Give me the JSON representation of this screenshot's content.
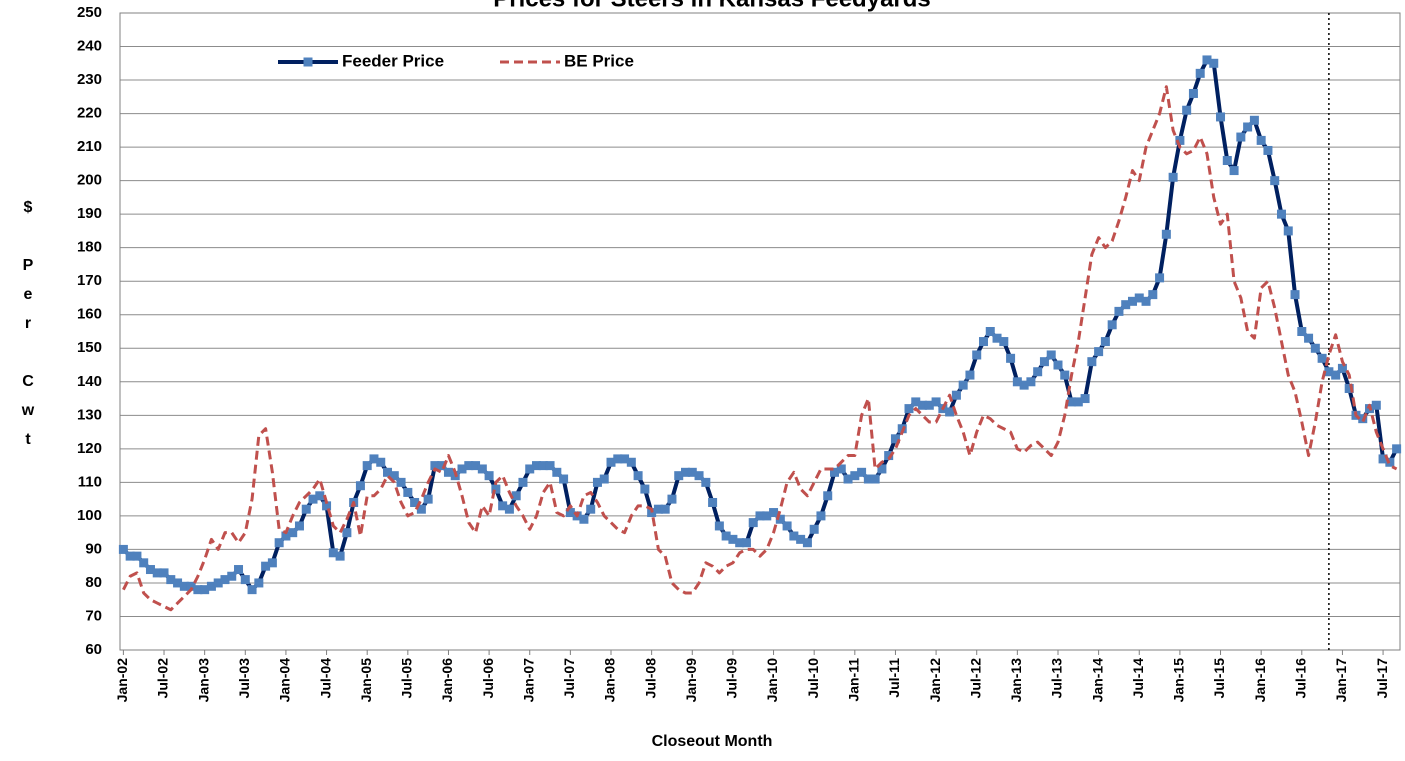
{
  "chart_data": {
    "type": "line",
    "title": "Prices for Steers in Kansas Feedyards",
    "x_label": "Closeout Month",
    "y_label": "$ Per Cwt",
    "categories": [
      "Jan-02",
      null,
      null,
      null,
      null,
      null,
      "Jul-02",
      null,
      null,
      null,
      null,
      null,
      "Jan-03",
      null,
      null,
      null,
      null,
      null,
      "Jul-03",
      null,
      null,
      null,
      null,
      null,
      "Jan-04",
      null,
      null,
      null,
      null,
      null,
      "Jul-04",
      null,
      null,
      null,
      null,
      null,
      "Jan-05",
      null,
      null,
      null,
      null,
      null,
      "Jul-05",
      null,
      null,
      null,
      null,
      null,
      "Jan-06",
      null,
      null,
      null,
      null,
      null,
      "Jul-06",
      null,
      null,
      null,
      null,
      null,
      "Jan-07",
      null,
      null,
      null,
      null,
      null,
      "Jul-07",
      null,
      null,
      null,
      null,
      null,
      "Jan-08",
      null,
      null,
      null,
      null,
      null,
      "Jul-08",
      null,
      null,
      null,
      null,
      null,
      "Jan-09",
      null,
      null,
      null,
      null,
      null,
      "Jul-09",
      null,
      null,
      null,
      null,
      null,
      "Jan-10",
      null,
      null,
      null,
      null,
      null,
      "Jul-10",
      null,
      null,
      null,
      null,
      null,
      "Jan-11",
      null,
      null,
      null,
      null,
      null,
      "Jul-11",
      null,
      null,
      null,
      null,
      null,
      "Jan-12",
      null,
      null,
      null,
      null,
      null,
      "Jul-12",
      null,
      null,
      null,
      null,
      null,
      "Jan-13",
      null,
      null,
      null,
      null,
      null,
      "Jul-13",
      null,
      null,
      null,
      null,
      null,
      "Jan-14",
      null,
      null,
      null,
      null,
      null,
      "Jul-14",
      null,
      null,
      null,
      null,
      null,
      "Jan-15",
      null,
      null,
      null,
      null,
      null,
      "Jul-15",
      null,
      null,
      null,
      null,
      null,
      "Jan-16",
      null,
      null,
      null,
      null,
      null,
      "Jul-16",
      null,
      null,
      null,
      null,
      null,
      "Jan-17",
      null,
      null,
      null,
      null,
      null,
      "Jul-17",
      null,
      null
    ],
    "series": [
      {
        "name": "Feeder Price",
        "color": "#002060",
        "marker_color": "#4f81bd",
        "style": "solid",
        "values": [
          90,
          88,
          88,
          86,
          84,
          83,
          83,
          81,
          80,
          79,
          79,
          78,
          78,
          79,
          80,
          81,
          82,
          84,
          81,
          78,
          80,
          85,
          86,
          92,
          94,
          95,
          97,
          102,
          105,
          106,
          103,
          89,
          88,
          95,
          104,
          109,
          115,
          117,
          116,
          113,
          112,
          110,
          107,
          104,
          102,
          105,
          115,
          115,
          113,
          112,
          114,
          115,
          115,
          114,
          112,
          108,
          103,
          102,
          106,
          110,
          114,
          115,
          115,
          115,
          113,
          111,
          101,
          100,
          99,
          102,
          110,
          111,
          116,
          117,
          117,
          116,
          112,
          108,
          101,
          102,
          102,
          105,
          112,
          113,
          113,
          112,
          110,
          104,
          97,
          94,
          93,
          92,
          92,
          98,
          100,
          100,
          101,
          99,
          97,
          94,
          93,
          92,
          96,
          100,
          106,
          113,
          114,
          111,
          112,
          113,
          111,
          111,
          114,
          118,
          123,
          126,
          132,
          134,
          133,
          133,
          134,
          132,
          131,
          136,
          139,
          142,
          148,
          152,
          155,
          153,
          152,
          147,
          140,
          139,
          140,
          143,
          146,
          148,
          145,
          142,
          134,
          134,
          135,
          146,
          149,
          152,
          157,
          161,
          163,
          164,
          165,
          164,
          166,
          171,
          184,
          201,
          212,
          221,
          226,
          232,
          236,
          235,
          219,
          206,
          203,
          213,
          216,
          218,
          212,
          209,
          200,
          190,
          185,
          166,
          155,
          153,
          150,
          147,
          143,
          142,
          144,
          138,
          130,
          129,
          132,
          133,
          117,
          116,
          120
        ]
      },
      {
        "name": "BE Price",
        "color": "#c0504d",
        "style": "dashed",
        "values": [
          78,
          82,
          83,
          77,
          75,
          74,
          73,
          72,
          74,
          76,
          78,
          82,
          87,
          93,
          90,
          95,
          95,
          92,
          95,
          105,
          124,
          126,
          113,
          96,
          95,
          100,
          104,
          106,
          108,
          111,
          104,
          97,
          95,
          99,
          104,
          94,
          106,
          106,
          108,
          112,
          110,
          104,
          100,
          101,
          105,
          110,
          114,
          113,
          118,
          113,
          106,
          98,
          95,
          103,
          100,
          110,
          112,
          107,
          103,
          100,
          96,
          100,
          107,
          110,
          101,
          100,
          103,
          100,
          106,
          107,
          104,
          100,
          98,
          96,
          95,
          100,
          103,
          103,
          102,
          90,
          88,
          80,
          78,
          77,
          77,
          80,
          86,
          85,
          83,
          85,
          86,
          89,
          90,
          90,
          88,
          90,
          95,
          102,
          110,
          113,
          108,
          106,
          110,
          114,
          114,
          114,
          116,
          118,
          118,
          130,
          135,
          114,
          116,
          117,
          120,
          125,
          130,
          132,
          130,
          128,
          128,
          132,
          136,
          130,
          125,
          118,
          125,
          130,
          129,
          127,
          126,
          125,
          120,
          119,
          121,
          122,
          120,
          118,
          122,
          130,
          142,
          152,
          165,
          178,
          183,
          180,
          182,
          188,
          195,
          203,
          200,
          210,
          215,
          220,
          228,
          215,
          210,
          208,
          209,
          213,
          208,
          195,
          187,
          190,
          170,
          165,
          155,
          153,
          168,
          170,
          162,
          152,
          142,
          137,
          128,
          118,
          128,
          140,
          148,
          154,
          146,
          142,
          130,
          128,
          133,
          125,
          120,
          115,
          114
        ]
      }
    ],
    "ylim": [
      60,
      250
    ],
    "yticks": [
      60,
      70,
      80,
      90,
      100,
      110,
      120,
      130,
      140,
      150,
      160,
      170,
      180,
      190,
      200,
      210,
      220,
      230,
      240,
      250
    ],
    "grid": true,
    "legend": "top-left",
    "reference_line": {
      "index": 178
    }
  }
}
